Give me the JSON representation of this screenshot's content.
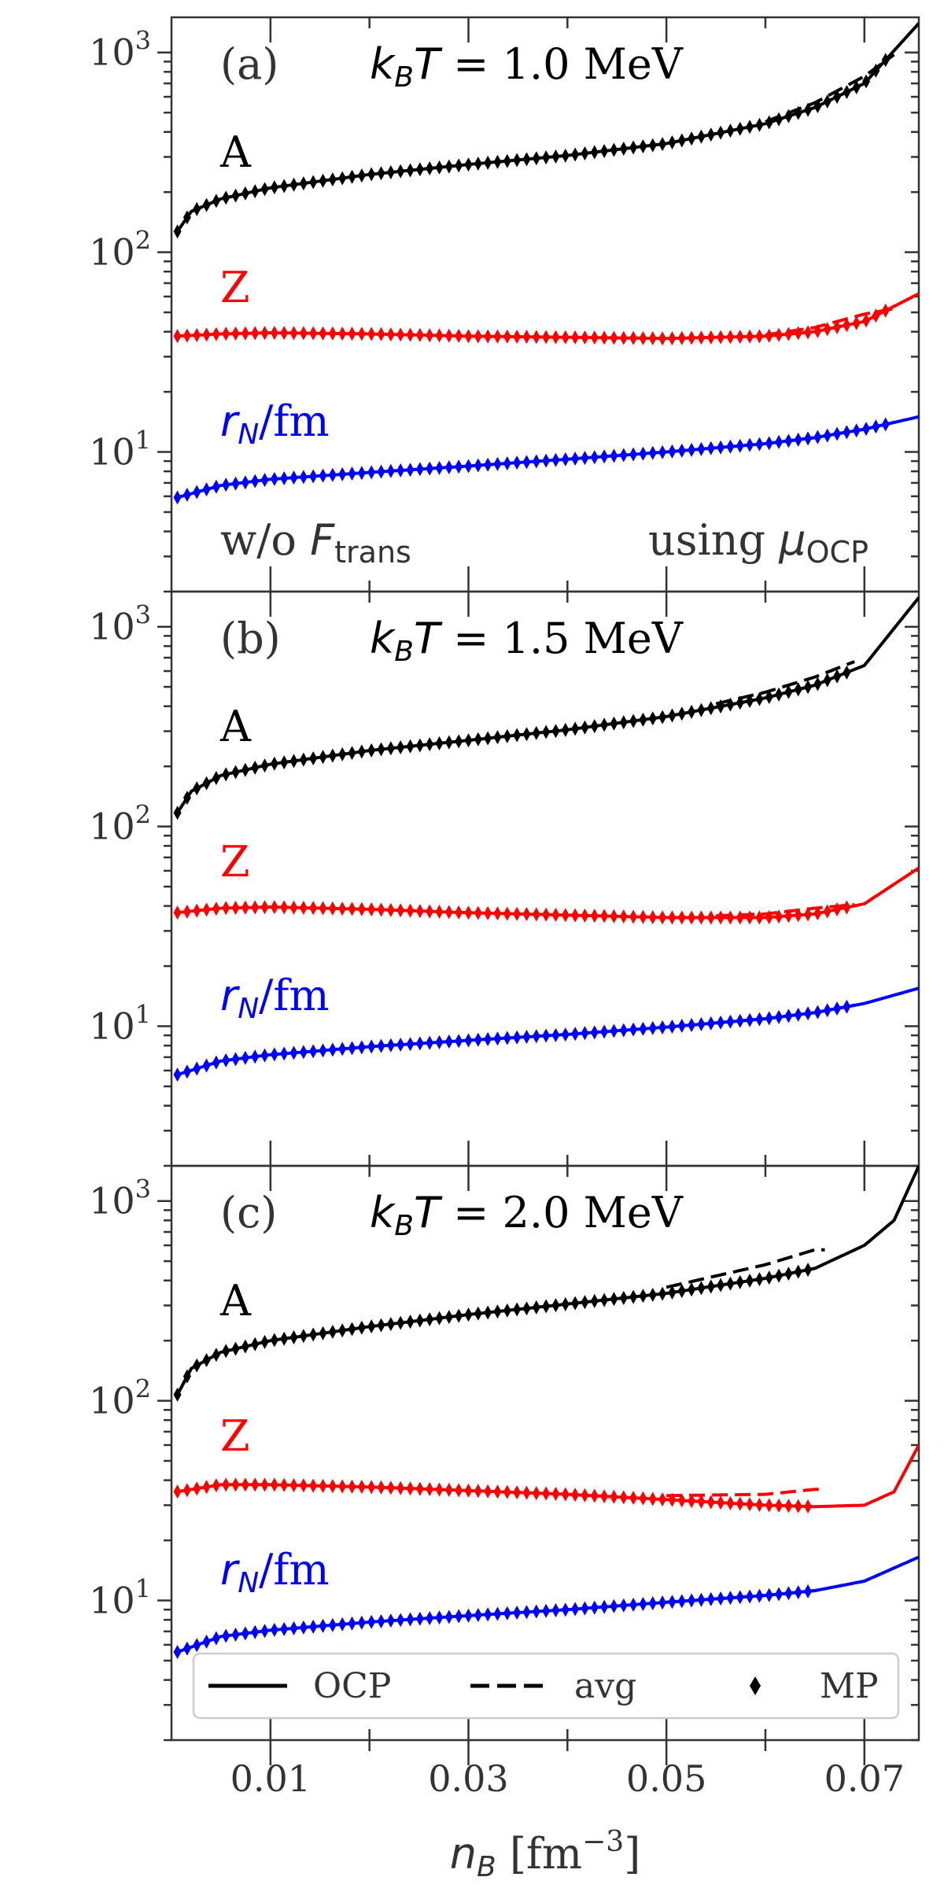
{
  "chart_data": {
    "type": "line",
    "xlabel": "n_B [fm^-3]",
    "xlabel_parts": {
      "sym": "n",
      "sub": "B",
      "unit_pre": " [fm",
      "unit_sup": "−3",
      "unit_post": "]"
    },
    "xlim": [
      0.0,
      0.0755
    ],
    "xticks": [
      0.01,
      0.03,
      0.05,
      0.07
    ],
    "xtick_labels": [
      "0.01",
      "0.03",
      "0.05",
      "0.07"
    ],
    "yscale": "log",
    "ylim": [
      2.0,
      1500
    ],
    "yticks": [
      10,
      100,
      1000
    ],
    "ytick_labels": [
      {
        "base": "10",
        "exp": "1"
      },
      {
        "base": "10",
        "exp": "2"
      },
      {
        "base": "10",
        "exp": "3"
      }
    ],
    "colors": {
      "A": "#000000",
      "Z": "#ff0000",
      "rN": "#0000ff"
    },
    "legend": {
      "placement": "bottom",
      "entries": [
        {
          "label": "OCP",
          "style": "solid"
        },
        {
          "label": "avg",
          "style": "dashed"
        },
        {
          "label": "MP",
          "style": "diamond"
        }
      ]
    },
    "series_labels": {
      "A": "A",
      "Z": "Z",
      "rN": {
        "sym": "r",
        "sub": "N",
        "post": "/fm"
      }
    },
    "panels": [
      {
        "id": "a",
        "label": "(a)",
        "temp": {
          "pre": "k",
          "sub": "B",
          "sym": "T",
          "post": " = 1.0 MeV"
        },
        "notes": {
          "left": {
            "pre": "w/o ",
            "sym": "F",
            "sub": "trans"
          },
          "right": {
            "pre": "using ",
            "sym": "μ",
            "sub": "OCP"
          }
        },
        "mp_end": 0.073,
        "avg_range": [
          0.06,
          0.073
        ],
        "A": {
          "x": [
            0.0005,
            0.002,
            0.005,
            0.01,
            0.02,
            0.03,
            0.04,
            0.05,
            0.06,
            0.065,
            0.07,
            0.0755
          ],
          "ocp": [
            125,
            160,
            185,
            210,
            245,
            275,
            305,
            350,
            440,
            530,
            700,
            1400
          ],
          "avg": [
            125,
            160,
            185,
            210,
            245,
            275,
            305,
            350,
            450,
            560,
            760,
            1200
          ]
        },
        "Z": {
          "x": [
            0.0005,
            0.005,
            0.01,
            0.02,
            0.03,
            0.04,
            0.05,
            0.06,
            0.065,
            0.07,
            0.0755
          ],
          "ocp": [
            38,
            39,
            39.5,
            39,
            38,
            37.5,
            37,
            38,
            40,
            45,
            62
          ],
          "avg": [
            38,
            39,
            39.5,
            39,
            38,
            37.5,
            37,
            38.5,
            42,
            49,
            55
          ]
        },
        "rN": {
          "x": [
            0.0005,
            0.005,
            0.01,
            0.02,
            0.03,
            0.04,
            0.05,
            0.06,
            0.065,
            0.07,
            0.0755
          ],
          "ocp": [
            5.9,
            6.8,
            7.3,
            7.9,
            8.5,
            9.2,
            10.0,
            11.0,
            11.8,
            13.0,
            15.0
          ],
          "avg": [
            5.9,
            6.8,
            7.3,
            7.9,
            8.5,
            9.2,
            10.0,
            11.0,
            11.8,
            13.0,
            15.0
          ]
        }
      },
      {
        "id": "b",
        "label": "(b)",
        "temp": {
          "pre": "k",
          "sub": "B",
          "sym": "T",
          "post": " = 1.5 MeV"
        },
        "notes": null,
        "mp_end": 0.069,
        "avg_range": [
          0.055,
          0.069
        ],
        "A": {
          "x": [
            0.0005,
            0.002,
            0.005,
            0.01,
            0.02,
            0.03,
            0.04,
            0.05,
            0.06,
            0.065,
            0.07,
            0.0755
          ],
          "ocp": [
            115,
            150,
            180,
            205,
            240,
            270,
            305,
            355,
            440,
            510,
            640,
            1400
          ],
          "avg": [
            115,
            150,
            180,
            205,
            240,
            270,
            305,
            360,
            470,
            560,
            700,
            700
          ]
        },
        "Z": {
          "x": [
            0.0005,
            0.005,
            0.01,
            0.02,
            0.03,
            0.04,
            0.05,
            0.06,
            0.065,
            0.07,
            0.0755
          ],
          "ocp": [
            37,
            39,
            39.5,
            38.5,
            37,
            36,
            35,
            35,
            36.5,
            41,
            62
          ],
          "avg": [
            37,
            39,
            39.5,
            38.5,
            37,
            36,
            35,
            36.5,
            39,
            41,
            41
          ]
        },
        "rN": {
          "x": [
            0.0005,
            0.005,
            0.01,
            0.02,
            0.03,
            0.04,
            0.05,
            0.06,
            0.065,
            0.07,
            0.0755
          ],
          "ocp": [
            5.7,
            6.7,
            7.2,
            7.9,
            8.5,
            9.1,
            9.9,
            10.9,
            11.7,
            13.0,
            15.5
          ],
          "avg": [
            5.7,
            6.7,
            7.2,
            7.9,
            8.5,
            9.1,
            9.9,
            10.9,
            11.7,
            13.0,
            13.0
          ]
        }
      },
      {
        "id": "c",
        "label": "(c)",
        "temp": {
          "pre": "k",
          "sub": "B",
          "sym": "T",
          "post": " = 2.0 MeV"
        },
        "notes": null,
        "mp_end": 0.065,
        "avg_range": [
          0.05,
          0.066
        ],
        "A": {
          "x": [
            0.0005,
            0.002,
            0.005,
            0.01,
            0.02,
            0.03,
            0.04,
            0.05,
            0.06,
            0.065,
            0.07,
            0.073,
            0.0755
          ],
          "ocp": [
            105,
            145,
            175,
            200,
            235,
            270,
            305,
            345,
            410,
            460,
            600,
            800,
            1500
          ],
          "avg": [
            105,
            145,
            175,
            200,
            235,
            270,
            310,
            370,
            480,
            570,
            570,
            570,
            570
          ]
        },
        "Z": {
          "x": [
            0.0005,
            0.005,
            0.01,
            0.02,
            0.03,
            0.04,
            0.05,
            0.06,
            0.065,
            0.07,
            0.073,
            0.0755
          ],
          "ocp": [
            35,
            38,
            38,
            37,
            35.5,
            34,
            32,
            30,
            29.5,
            30,
            35,
            60
          ],
          "avg": [
            35,
            38,
            38,
            37,
            35.5,
            34,
            33.5,
            34,
            36,
            36,
            36,
            36
          ]
        },
        "rN": {
          "x": [
            0.0005,
            0.005,
            0.01,
            0.02,
            0.03,
            0.04,
            0.05,
            0.06,
            0.065,
            0.07,
            0.0755
          ],
          "ocp": [
            5.5,
            6.6,
            7.1,
            7.8,
            8.4,
            9.0,
            9.8,
            10.6,
            11.2,
            12.5,
            16.5
          ],
          "avg": [
            5.5,
            6.6,
            7.1,
            7.8,
            8.4,
            9.0,
            9.8,
            10.6,
            11.2,
            12.5,
            12.5
          ]
        }
      }
    ]
  }
}
